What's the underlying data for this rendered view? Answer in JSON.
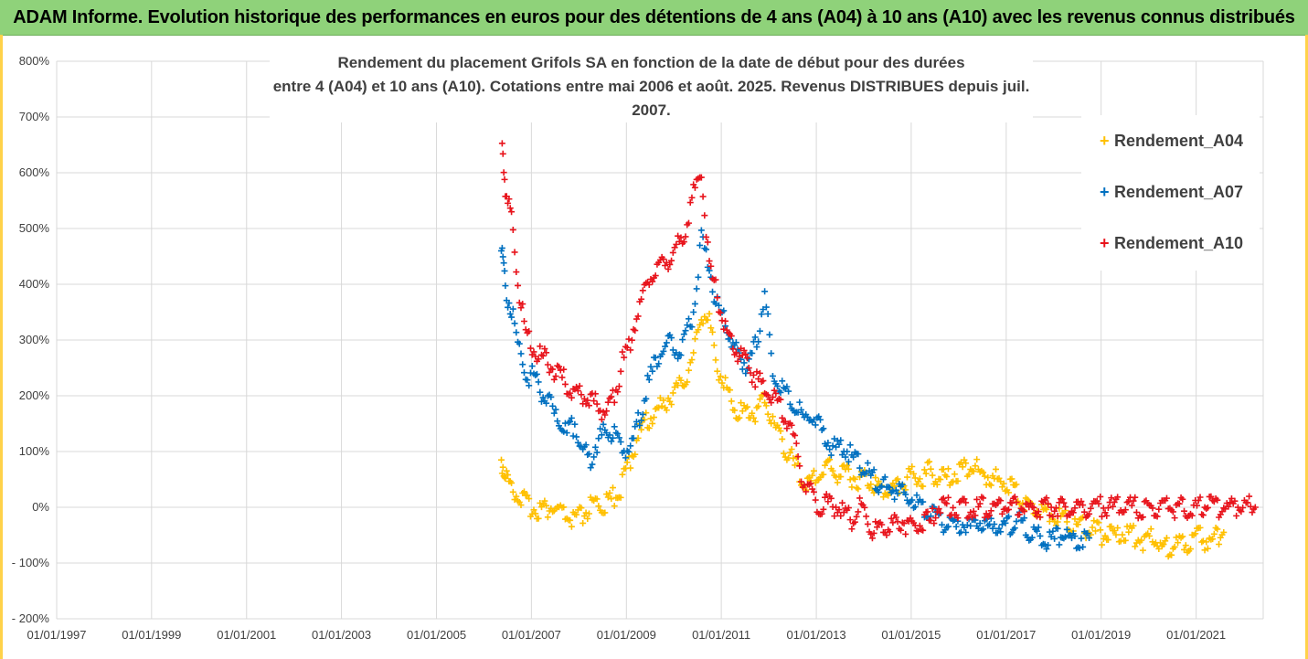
{
  "banner": {
    "title": "ADAM Informe. Evolution historique des performances en euros pour des détentions de 4 ans (A04) à 10 ans (A10) avec les revenus connus distribués"
  },
  "colors": {
    "banner_bg": "#8fd27a",
    "frame": "#ffd24a",
    "A04": "#ffc000",
    "A07": "#0070c0",
    "A10": "#e8141c",
    "grid": "#d9d9d9"
  },
  "chart_data": {
    "type": "scatter",
    "title_line1": "Rendement du placement Grifols SA en fonction de la date de début pour des durées",
    "title_line2": "entre 4 (A04) et 10 ans (A10). Cotations entre mai 2006 et août. 2025. Revenus DISTRIBUES depuis juil. 2007.",
    "xlabel": "",
    "ylabel": "",
    "x_range": [
      "1997-01-01",
      "2022-06-01"
    ],
    "x_ticks": [
      "01/01/1997",
      "01/01/1999",
      "01/01/2001",
      "01/01/2003",
      "01/01/2005",
      "01/01/2007",
      "01/01/2009",
      "01/01/2011",
      "01/01/2013",
      "01/01/2015",
      "01/01/2017",
      "01/01/2019",
      "01/01/2021"
    ],
    "x_tick_dates": [
      "1997-01-01",
      "1999-01-01",
      "2001-01-01",
      "2003-01-01",
      "2005-01-01",
      "2007-01-01",
      "2009-01-01",
      "2011-01-01",
      "2013-01-01",
      "2015-01-01",
      "2017-01-01",
      "2019-01-01",
      "2021-01-01"
    ],
    "y_range": [
      -200,
      800
    ],
    "y_ticks": [
      800,
      700,
      600,
      500,
      400,
      300,
      200,
      100,
      0,
      -100,
      -200
    ],
    "y_tick_labels": [
      "800%",
      "700%",
      "600%",
      "500%",
      "400%",
      "300%",
      "200%",
      "100%",
      "0%",
      "- 100%",
      "- 200%"
    ],
    "grid": true,
    "legend_position": "right",
    "marker": "+",
    "series": [
      {
        "name": "Rendement_A04",
        "color": "#ffc000",
        "dates": [
          "2006-05-15",
          "2006-06-15",
          "2006-08-01",
          "2006-10-01",
          "2006-12-01",
          "2007-02-01",
          "2007-04-01",
          "2007-06-01",
          "2007-08-01",
          "2007-10-01",
          "2007-12-01",
          "2008-02-01",
          "2008-04-01",
          "2008-06-01",
          "2008-08-01",
          "2008-10-01",
          "2008-12-01",
          "2009-02-01",
          "2009-04-01",
          "2009-06-01",
          "2009-08-01",
          "2009-10-01",
          "2009-12-01",
          "2010-02-01",
          "2010-04-01",
          "2010-06-01",
          "2010-08-01",
          "2010-10-01",
          "2010-12-01",
          "2011-02-01",
          "2011-04-01",
          "2011-06-01",
          "2011-08-01",
          "2011-10-01",
          "2011-12-01",
          "2012-02-01",
          "2012-04-01",
          "2012-06-01",
          "2012-08-01",
          "2012-10-01",
          "2012-12-01",
          "2013-02-01",
          "2013-04-01",
          "2013-06-01",
          "2013-08-01",
          "2013-10-01",
          "2013-12-01",
          "2014-02-01",
          "2014-04-01",
          "2014-06-01",
          "2014-08-01",
          "2014-10-01",
          "2014-12-01",
          "2015-02-01",
          "2015-04-01",
          "2015-06-01",
          "2015-08-01",
          "2015-10-01",
          "2015-12-01",
          "2016-02-01",
          "2016-04-01",
          "2016-06-01",
          "2016-08-01",
          "2016-10-01",
          "2016-12-01",
          "2017-02-01",
          "2017-04-01",
          "2017-06-01",
          "2017-08-01",
          "2017-10-01",
          "2017-12-01",
          "2018-02-01",
          "2018-04-01",
          "2018-06-01",
          "2018-08-01",
          "2018-10-01",
          "2018-12-01",
          "2019-02-01",
          "2019-04-01",
          "2019-06-01",
          "2019-08-01",
          "2019-10-01",
          "2019-12-01",
          "2020-02-01",
          "2020-04-01",
          "2020-06-01",
          "2020-08-01",
          "2020-10-01",
          "2020-12-01",
          "2021-02-01",
          "2021-04-01",
          "2021-06-01",
          "2021-08-01"
        ],
        "values": [
          85,
          55,
          40,
          20,
          5,
          0,
          -5,
          0,
          -10,
          -20,
          -25,
          -15,
          0,
          5,
          5,
          20,
          40,
          90,
          130,
          150,
          170,
          180,
          200,
          210,
          230,
          270,
          350,
          330,
          250,
          220,
          180,
          170,
          170,
          170,
          200,
          150,
          130,
          95,
          70,
          40,
          45,
          60,
          75,
          60,
          70,
          55,
          50,
          55,
          40,
          35,
          30,
          40,
          50,
          60,
          55,
          65,
          55,
          50,
          60,
          70,
          75,
          65,
          55,
          50,
          45,
          40,
          20,
          10,
          0,
          -5,
          -10,
          -15,
          -20,
          -30,
          -35,
          -40,
          -45,
          -50,
          -55,
          -50,
          -45,
          -55,
          -60,
          -55,
          -70,
          -70,
          -65,
          -65,
          -60,
          -55,
          -60,
          -55,
          -45
        ]
      },
      {
        "name": "Rendement_A07",
        "color": "#0070c0",
        "dates": [
          "2006-05-15",
          "2006-06-15",
          "2006-08-01",
          "2006-10-01",
          "2006-12-01",
          "2007-02-01",
          "2007-04-01",
          "2007-06-01",
          "2007-08-01",
          "2007-10-01",
          "2007-12-01",
          "2008-02-01",
          "2008-04-01",
          "2008-06-01",
          "2008-08-01",
          "2008-10-01",
          "2008-12-01",
          "2009-02-01",
          "2009-04-01",
          "2009-06-01",
          "2009-08-01",
          "2009-10-01",
          "2009-12-01",
          "2010-02-01",
          "2010-04-01",
          "2010-06-01",
          "2010-08-01",
          "2010-10-01",
          "2010-12-01",
          "2011-02-01",
          "2011-04-01",
          "2011-06-01",
          "2011-08-01",
          "2011-10-01",
          "2011-12-01",
          "2012-02-01",
          "2012-04-01",
          "2012-06-01",
          "2012-08-01",
          "2012-10-01",
          "2012-12-01",
          "2013-02-01",
          "2013-04-01",
          "2013-06-01",
          "2013-08-01",
          "2013-10-01",
          "2013-12-01",
          "2014-02-01",
          "2014-04-01",
          "2014-06-01",
          "2014-08-01",
          "2014-10-01",
          "2014-12-01",
          "2015-02-01",
          "2015-04-01",
          "2015-06-01",
          "2015-08-01",
          "2015-10-01",
          "2015-12-01",
          "2016-02-01",
          "2016-04-01",
          "2016-06-01",
          "2016-08-01",
          "2016-10-01",
          "2016-12-01",
          "2017-02-01",
          "2017-04-01",
          "2017-06-01",
          "2017-08-01",
          "2017-10-01",
          "2017-12-01",
          "2018-02-01",
          "2018-04-01",
          "2018-06-01",
          "2018-08-01",
          "2018-10-01"
        ],
        "values": [
          470,
          390,
          360,
          280,
          240,
          230,
          200,
          180,
          150,
          130,
          150,
          100,
          90,
          120,
          140,
          130,
          110,
          100,
          150,
          210,
          250,
          280,
          300,
          280,
          310,
          350,
          480,
          430,
          360,
          330,
          290,
          270,
          250,
          300,
          380,
          250,
          220,
          200,
          175,
          160,
          170,
          140,
          120,
          100,
          110,
          90,
          80,
          60,
          50,
          40,
          30,
          35,
          20,
          10,
          0,
          -10,
          -20,
          -30,
          -40,
          -30,
          -35,
          -25,
          -40,
          -30,
          -35,
          -30,
          -20,
          -40,
          -50,
          -55,
          -60,
          -55,
          -50,
          -60,
          -55,
          -55
        ]
      },
      {
        "name": "Rendement_A10",
        "color": "#e8141c",
        "dates": [
          "2006-05-15",
          "2006-06-15",
          "2006-08-01",
          "2006-10-01",
          "2006-12-01",
          "2007-02-01",
          "2007-04-01",
          "2007-06-01",
          "2007-08-01",
          "2007-10-01",
          "2007-12-01",
          "2008-02-01",
          "2008-04-01",
          "2008-06-01",
          "2008-08-01",
          "2008-10-01",
          "2008-12-01",
          "2009-02-01",
          "2009-04-01",
          "2009-06-01",
          "2009-08-01",
          "2009-10-01",
          "2009-12-01",
          "2010-02-01",
          "2010-04-01",
          "2010-06-01",
          "2010-08-01",
          "2010-10-01",
          "2010-12-01",
          "2011-02-01",
          "2011-04-01",
          "2011-06-01",
          "2011-08-01",
          "2011-10-01",
          "2011-12-01",
          "2012-02-01",
          "2012-04-01",
          "2012-06-01",
          "2012-08-01",
          "2012-10-01",
          "2012-12-01",
          "2013-02-01",
          "2013-04-01",
          "2013-06-01",
          "2013-08-01",
          "2013-10-01",
          "2013-12-01",
          "2014-02-01",
          "2014-04-01",
          "2014-06-01",
          "2014-08-01",
          "2014-10-01",
          "2014-12-01",
          "2015-02-01",
          "2015-04-01",
          "2015-06-01",
          "2015-08-01",
          "2015-10-01",
          "2015-12-01",
          "2016-02-01",
          "2016-04-01",
          "2016-06-01",
          "2016-08-01",
          "2016-10-01",
          "2016-12-01",
          "2017-02-01",
          "2017-04-01",
          "2017-06-01",
          "2017-08-01",
          "2017-10-01",
          "2017-12-01",
          "2018-02-01",
          "2018-04-01",
          "2018-06-01",
          "2018-08-01",
          "2018-10-01",
          "2018-12-01",
          "2019-02-01",
          "2019-04-01",
          "2019-06-01",
          "2019-08-01",
          "2019-10-01",
          "2019-12-01",
          "2020-02-01",
          "2020-04-01",
          "2020-06-01",
          "2020-08-01",
          "2020-10-01",
          "2020-12-01",
          "2021-02-01",
          "2021-04-01",
          "2021-06-01",
          "2021-08-01",
          "2021-10-01",
          "2021-12-01",
          "2022-02-01",
          "2022-04-01"
        ],
        "values": [
          700,
          560,
          520,
          380,
          300,
          280,
          270,
          250,
          240,
          220,
          210,
          200,
          190,
          180,
          170,
          200,
          260,
          300,
          350,
          400,
          420,
          430,
          450,
          470,
          500,
          560,
          600,
          430,
          380,
          320,
          290,
          270,
          250,
          230,
          220,
          200,
          180,
          150,
          100,
          40,
          20,
          -10,
          10,
          0,
          -10,
          -20,
          0,
          -30,
          -40,
          -35,
          -30,
          -25,
          -30,
          -35,
          -30,
          -25,
          0,
          0,
          0,
          0,
          0,
          0,
          0,
          0,
          0,
          0,
          0,
          0,
          0,
          0,
          0,
          0,
          0,
          0,
          0,
          0,
          0,
          0,
          0,
          0,
          0,
          0,
          0,
          0,
          0,
          0,
          0,
          0,
          0,
          0,
          0,
          0,
          0,
          0,
          0,
          0,
          0
        ]
      }
    ]
  }
}
